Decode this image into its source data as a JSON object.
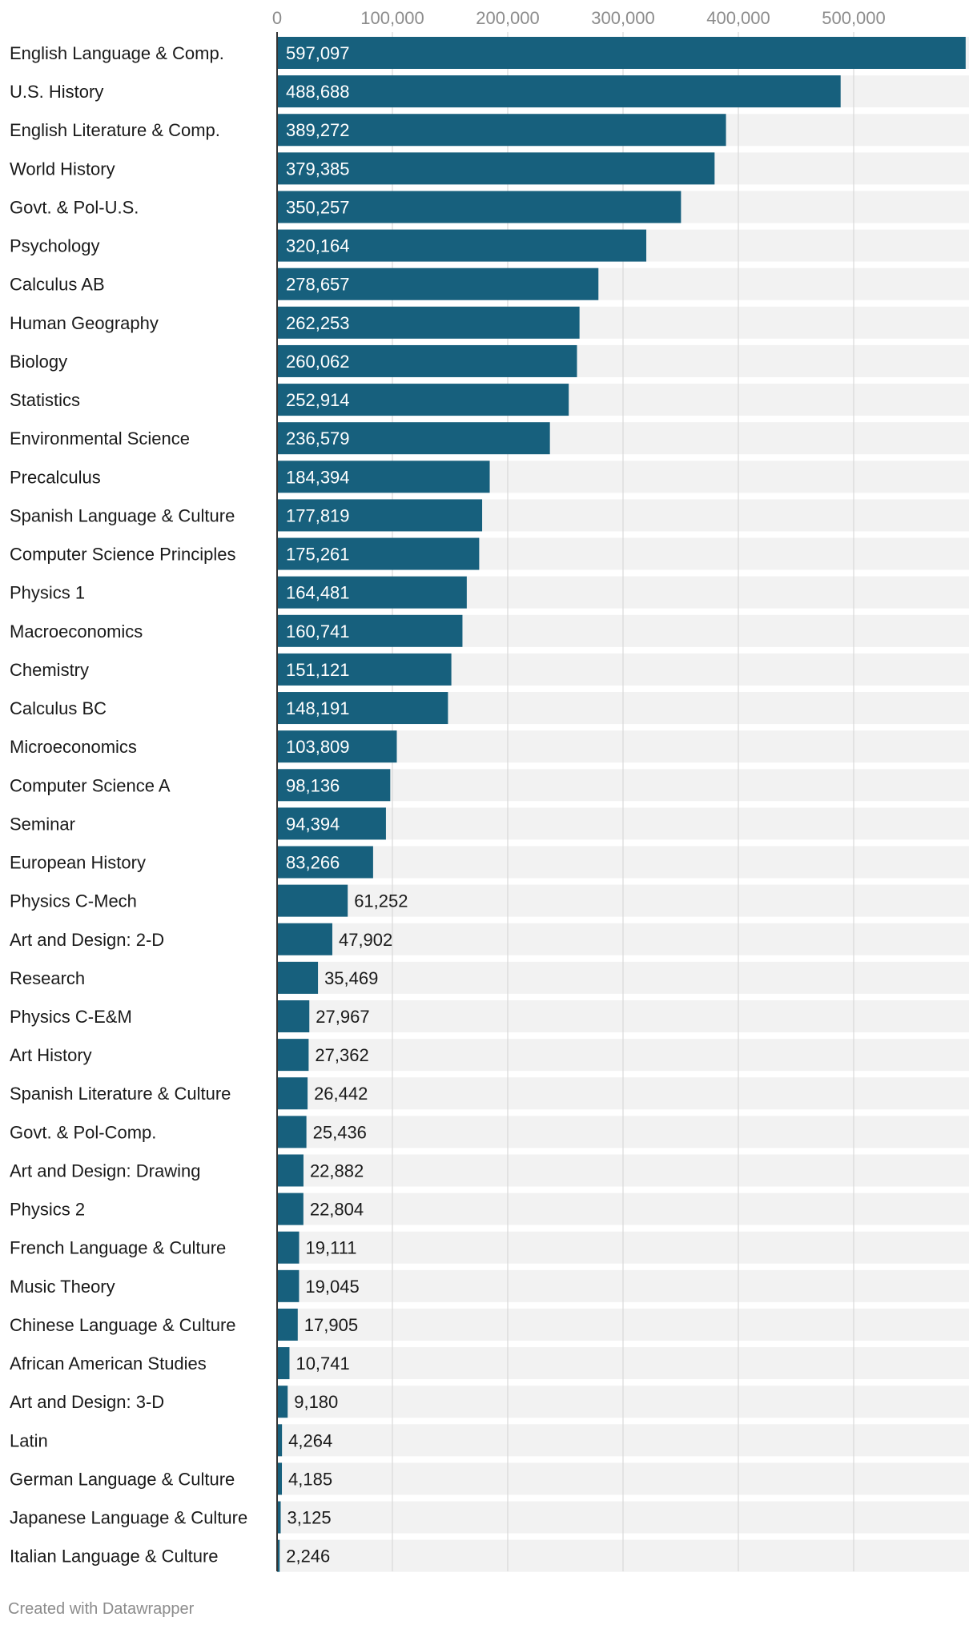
{
  "chart_data": {
    "type": "bar",
    "orientation": "horizontal",
    "title": "",
    "xlabel": "",
    "ylabel": "",
    "xlim": [
      0,
      600000
    ],
    "x_ticks": [
      {
        "value": 0,
        "label": "0"
      },
      {
        "value": 100000,
        "label": "100,000"
      },
      {
        "value": 200000,
        "label": "200,000"
      },
      {
        "value": 300000,
        "label": "300,000"
      },
      {
        "value": 400000,
        "label": "400,000"
      },
      {
        "value": 500000,
        "label": "500,000"
      }
    ],
    "grid": true,
    "axis_position": "top",
    "categories": [
      "English Language & Comp.",
      "U.S. History",
      "English Literature & Comp.",
      "World History",
      "Govt. & Pol-U.S.",
      "Psychology",
      "Calculus AB",
      "Human Geography",
      "Biology",
      "Statistics",
      "Environmental Science",
      "Precalculus",
      "Spanish Language & Culture",
      "Computer Science Principles",
      "Physics 1",
      "Macroeconomics",
      "Chemistry",
      "Calculus BC",
      "Microeconomics",
      "Computer Science A",
      "Seminar",
      "European History",
      "Physics C-Mech",
      "Art and Design: 2-D",
      "Research",
      "Physics C-E&M",
      "Art History",
      "Spanish Literature & Culture",
      "Govt. & Pol-Comp.",
      "Art and Design: Drawing",
      "Physics 2",
      "French Language & Culture",
      "Music Theory",
      "Chinese Language & Culture",
      "African American Studies",
      "Art and Design: 3-D",
      "Latin",
      "German Language & Culture",
      "Japanese Language & Culture",
      "Italian Language & Culture"
    ],
    "values": [
      597097,
      488688,
      389272,
      379385,
      350257,
      320164,
      278657,
      262253,
      260062,
      252914,
      236579,
      184394,
      177819,
      175261,
      164481,
      160741,
      151121,
      148191,
      103809,
      98136,
      94394,
      83266,
      61252,
      47902,
      35469,
      27967,
      27362,
      26442,
      25436,
      22882,
      22804,
      19111,
      19045,
      17905,
      10741,
      9180,
      4264,
      4185,
      3125,
      2246
    ],
    "value_labels": [
      "597,097",
      "488,688",
      "389,272",
      "379,385",
      "350,257",
      "320,164",
      "278,657",
      "262,253",
      "260,062",
      "252,914",
      "236,579",
      "184,394",
      "177,819",
      "175,261",
      "164,481",
      "160,741",
      "151,121",
      "148,191",
      "103,809",
      "98,136",
      "94,394",
      "83,266",
      "61,252",
      "47,902",
      "35,469",
      "27,967",
      "27,362",
      "26,442",
      "25,436",
      "22,882",
      "22,804",
      "19,111",
      "19,045",
      "17,905",
      "10,741",
      "9,180",
      "4,264",
      "4,185",
      "3,125",
      "2,246"
    ],
    "colors": {
      "bar": "#17607d",
      "track": "#f2f2f2",
      "grid": "#d9d9d9",
      "axis_line": "#333333",
      "tick_label": "#8c8c8c",
      "category_label": "#1a1a1a",
      "value_label_inside": "#ffffff",
      "value_label_outside": "#1a1a1a"
    }
  },
  "footer": {
    "credit": "Created with Datawrapper"
  }
}
